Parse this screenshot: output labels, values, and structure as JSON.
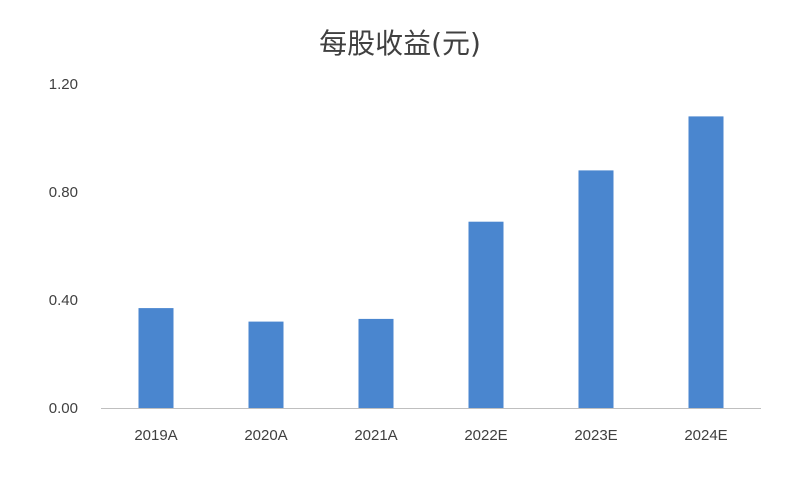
{
  "chart_data": {
    "type": "bar",
    "title": "每股收益(元)",
    "xlabel": "",
    "ylabel": "",
    "categories": [
      "2019A",
      "2020A",
      "2021A",
      "2022E",
      "2023E",
      "2024E"
    ],
    "values": [
      0.37,
      0.32,
      0.33,
      0.69,
      0.88,
      1.08
    ],
    "y_tick_labels": [
      "0.00",
      "0.40",
      "0.80",
      "1.20"
    ],
    "ylim": [
      0,
      1.2
    ],
    "grid": false,
    "legend": "none",
    "bar_color": "#4a86cf",
    "axis_color": "#bfbfbf",
    "text_color": "#404040"
  }
}
